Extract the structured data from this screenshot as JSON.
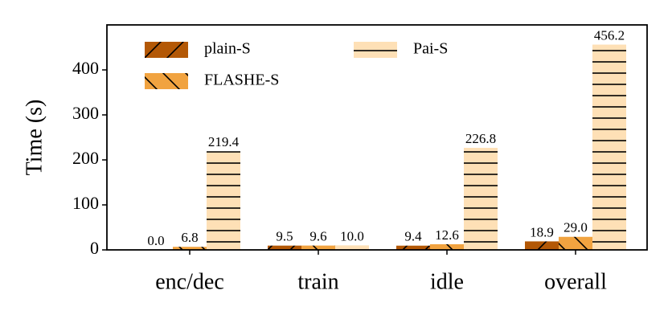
{
  "chart_data": {
    "type": "bar",
    "ylabel": "Time (s)",
    "categories": [
      "enc/dec",
      "train",
      "idle",
      "overall"
    ],
    "series": [
      {
        "name": "plain-S",
        "color": "#b35806",
        "hatch": "/",
        "values": [
          0.0,
          9.5,
          9.4,
          18.9
        ],
        "value_labels": [
          "0.0",
          "9.5",
          "9.4",
          "18.9"
        ]
      },
      {
        "name": "FLASHE-S",
        "color": "#f1a340",
        "hatch": "\\",
        "values": [
          6.8,
          9.6,
          12.6,
          29.0
        ],
        "value_labels": [
          "6.8",
          "9.6",
          "12.6",
          "29.0"
        ]
      },
      {
        "name": "Pai-S",
        "color": "#fee0b6",
        "hatch": "-",
        "values": [
          219.4,
          10.0,
          226.8,
          456.2
        ],
        "value_labels": [
          "219.4",
          "10.0",
          "226.8",
          "456.2"
        ]
      }
    ],
    "ylim": [
      0,
      500
    ],
    "yticks": [
      0,
      100,
      200,
      300,
      400
    ],
    "legend": "upper left",
    "grid": false
  }
}
